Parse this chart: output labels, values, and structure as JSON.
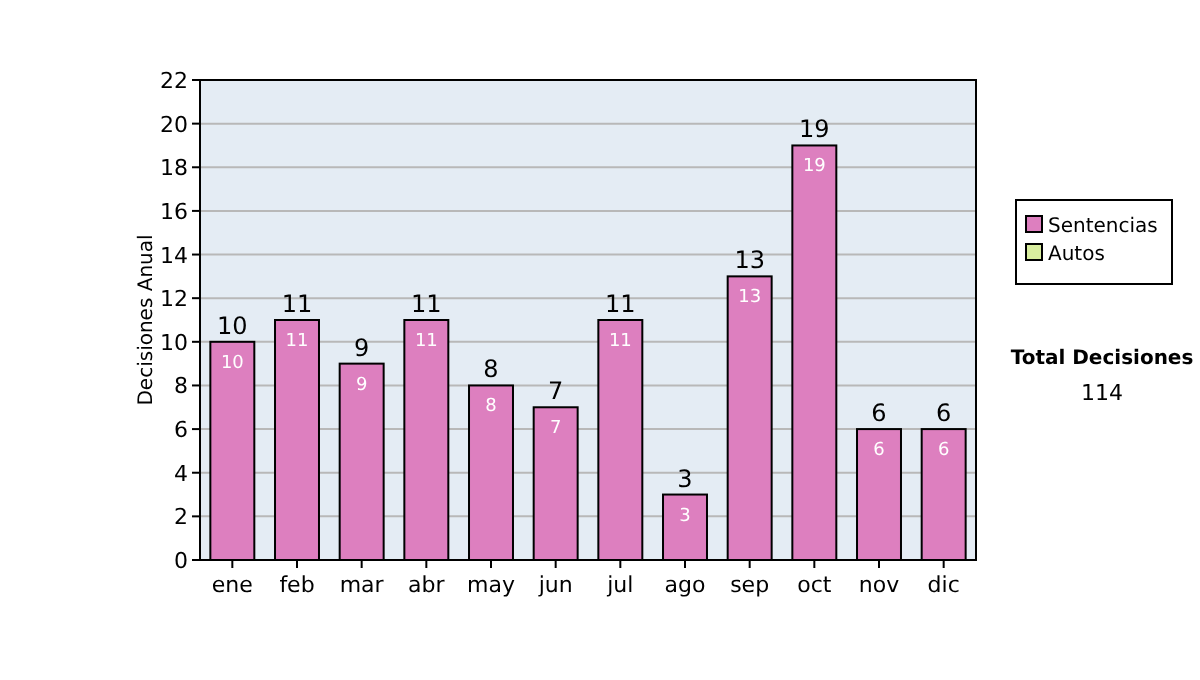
{
  "chart_data": {
    "type": "bar",
    "stacked": true,
    "ylabel": "Decisiones Anual",
    "categories": [
      "ene",
      "feb",
      "mar",
      "abr",
      "may",
      "jun",
      "jul",
      "ago",
      "sep",
      "oct",
      "nov",
      "dic"
    ],
    "series": [
      {
        "name": "Sentencias",
        "color": "#dd7fbf",
        "values": [
          10,
          11,
          9,
          11,
          8,
          7,
          11,
          3,
          13,
          19,
          6,
          6
        ],
        "value_labels": [
          "10",
          "11",
          "9",
          "11",
          "8",
          "7",
          "11",
          "3",
          "13",
          "19",
          "6",
          "6"
        ]
      },
      {
        "name": "Autos",
        "color": "#d9ee9f",
        "values": [
          0,
          0,
          0,
          0,
          0,
          0,
          0,
          0,
          0,
          0,
          0,
          0
        ]
      }
    ],
    "totals": [
      "10",
      "11",
      "9",
      "11",
      "8",
      "7",
      "11",
      "3",
      "13",
      "19",
      "6",
      "6"
    ],
    "ylim": [
      0,
      22
    ],
    "yticks": [
      0,
      2,
      4,
      6,
      8,
      10,
      12,
      14,
      16,
      18,
      20,
      22
    ],
    "grid": "y",
    "legend": "right",
    "annotations": [
      "Total Decisiones",
      "114"
    ]
  }
}
